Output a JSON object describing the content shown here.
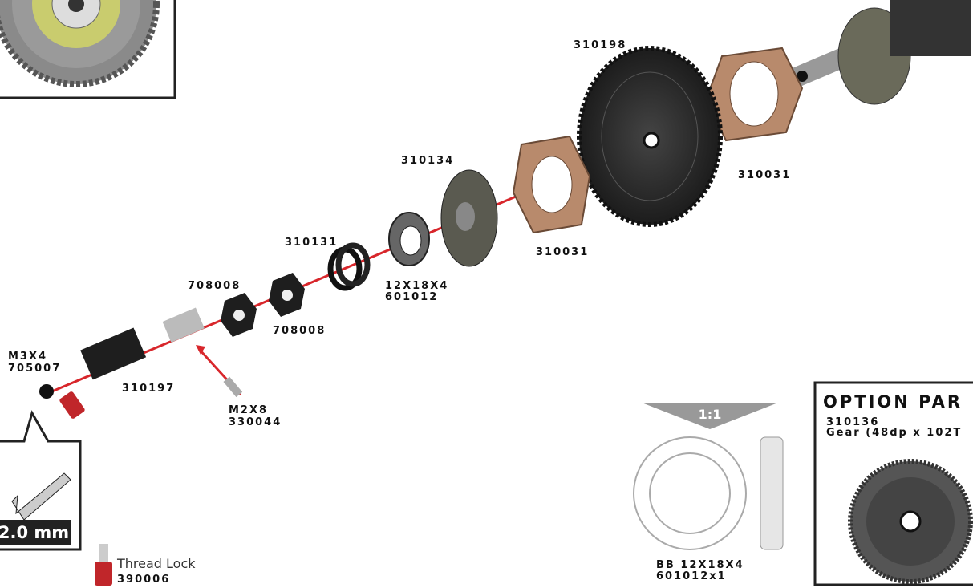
{
  "callouts": [
    {
      "lines": [
        "310198"
      ]
    },
    {
      "lines": [
        "310031"
      ]
    },
    {
      "lines": [
        "310134"
      ]
    },
    {
      "lines": [
        "310031"
      ]
    },
    {
      "lines": [
        "310131"
      ]
    },
    {
      "lines": [
        "708008"
      ]
    },
    {
      "lines": [
        "708008"
      ]
    },
    {
      "lines": [
        "12X18X4",
        "601012"
      ]
    },
    {
      "lines": [
        "M3X4",
        "705007"
      ]
    },
    {
      "lines": [
        "310197"
      ]
    },
    {
      "lines": [
        "M2X8",
        "330044"
      ]
    }
  ],
  "tool": {
    "size": "2.0 mm"
  },
  "thread_lock": {
    "name": "Thread Lock",
    "number": "390006"
  },
  "scale_box": {
    "ratio": "1:1",
    "lines": [
      "BB 12X18X4",
      "601012x1"
    ]
  },
  "option_parts": {
    "title": "OPTION PAR",
    "number": "310136",
    "description": "Gear (48dp x 102T"
  }
}
